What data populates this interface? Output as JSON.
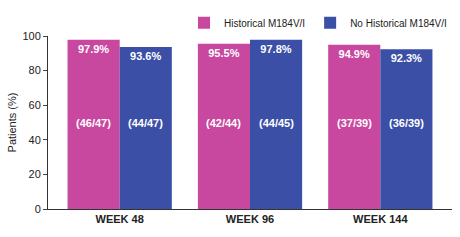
{
  "chart_data": {
    "type": "bar",
    "categories": [
      "WEEK 48",
      "WEEK 96",
      "WEEK 144"
    ],
    "y_label": "Patients (%)",
    "series": [
      {
        "name": "Historical M184V/I",
        "color": "#c8479f",
        "values": [
          97.9,
          95.5,
          94.9
        ],
        "value_labels": [
          "97.9%",
          "95.5%",
          "94.9%"
        ],
        "counts": [
          "(46/47)",
          "(42/44)",
          "(37/39)"
        ]
      },
      {
        "name": "No Historical M184V/I",
        "color": "#3b4fa6",
        "values": [
          93.6,
          97.8,
          92.3
        ],
        "value_labels": [
          "93.6%",
          "97.8%",
          "92.3%"
        ],
        "counts": [
          "(44/47)",
          "(44/45)",
          "(36/39)"
        ]
      }
    ],
    "ylim": [
      0,
      100
    ],
    "yticks": [
      0,
      20,
      40,
      60,
      80,
      100
    ],
    "grid": false,
    "legend": "top right",
    "data_labels": true
  }
}
